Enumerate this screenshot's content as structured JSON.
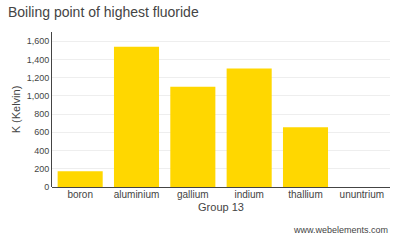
{
  "chart_data": {
    "type": "bar",
    "title": "Boiling point of highest fluoride",
    "ylabel": "K (Kelvin)",
    "xlabel": "Group 13",
    "categories": [
      "boron",
      "aluminium",
      "gallium",
      "indium",
      "thallium",
      "ununtrium"
    ],
    "values": [
      172,
      1537,
      1100,
      1300,
      655,
      0
    ],
    "color": "#FFD700",
    "ylim": [
      0,
      1700
    ],
    "yticks": [
      0,
      200,
      400,
      600,
      800,
      {
        "value": 1000,
        "label": "1,000"
      },
      {
        "value": 1200,
        "label": "1,200"
      },
      {
        "value": 1400,
        "label": "1,400"
      },
      {
        "value": 1600,
        "label": "1,600"
      }
    ],
    "grid": true,
    "annotations": [
      "www.webelements.com"
    ]
  }
}
